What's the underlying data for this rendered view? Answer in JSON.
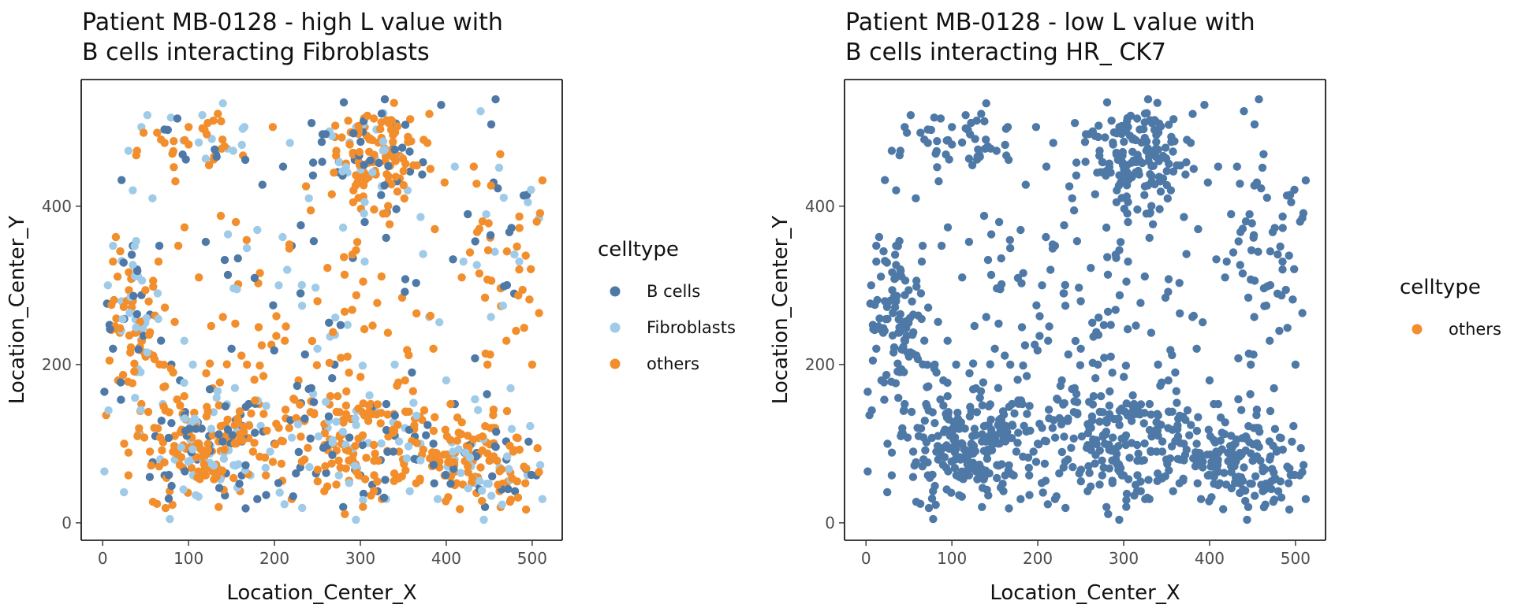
{
  "palette": {
    "B cells": "#4e79a7",
    "Fibroblasts": "#a0cbe8",
    "others": "#f28e2b"
  },
  "chart_data": [
    {
      "type": "scatter",
      "title_lines": [
        "Patient MB-0128 - high L value with",
        " B cells interacting Fibroblasts"
      ],
      "xlabel": "Location_Center_X",
      "ylabel": "Location_Center_Y",
      "xlim": [
        -25,
        535
      ],
      "ylim": [
        -22,
        560
      ],
      "xticks": [
        0,
        100,
        200,
        300,
        400,
        500
      ],
      "yticks": [
        0,
        200,
        400
      ],
      "grid": false,
      "legend_position": "right",
      "legend_title": "celltype",
      "legend_entries": [
        "B cells",
        "Fibroblasts",
        "others"
      ],
      "point_count_note": "approx. 1200 points, each categorized",
      "series": [
        {
          "name": "B cells",
          "points": [
            [
              5,
              277
            ],
            [
              8,
              250
            ],
            [
              12,
              220
            ],
            [
              22,
              433
            ],
            [
              35,
              350
            ],
            [
              40,
              320
            ],
            [
              55,
              263
            ],
            [
              66,
              350
            ],
            [
              72,
              60
            ],
            [
              80,
              200
            ],
            [
              90,
              180
            ],
            [
              96,
              140
            ],
            [
              105,
              120
            ],
            [
              110,
              80
            ],
            [
              120,
              355
            ],
            [
              132,
              465
            ],
            [
              150,
              220
            ],
            [
              155,
              130
            ],
            [
              162,
              60
            ],
            [
              170,
              150
            ],
            [
              180,
              30
            ],
            [
              200,
              100
            ],
            [
              210,
              450
            ],
            [
              220,
              350
            ],
            [
              230,
              70
            ],
            [
              245,
              455
            ],
            [
              260,
              120
            ],
            [
              270,
              200
            ],
            [
              280,
              20
            ],
            [
              290,
              80
            ],
            [
              300,
              60
            ],
            [
              305,
              380
            ],
            [
              320,
              40
            ],
            [
              330,
              360
            ],
            [
              340,
              110
            ],
            [
              360,
              190
            ],
            [
              372,
              440
            ],
            [
              385,
              100
            ],
            [
              394,
              528
            ],
            [
              400,
              60
            ],
            [
              410,
              150
            ],
            [
              425,
              390
            ],
            [
              445,
              20
            ],
            [
              455,
              430
            ],
            [
              470,
              80
            ],
            [
              480,
              40
            ],
            [
              505,
              60
            ]
          ]
        },
        {
          "name": "Fibroblasts",
          "points": [
            [
              2,
              65
            ],
            [
              6,
              300
            ],
            [
              12,
              350
            ],
            [
              22,
              280
            ],
            [
              30,
              470
            ],
            [
              35,
              420
            ],
            [
              45,
              500
            ],
            [
              52,
              515
            ],
            [
              58,
              410
            ],
            [
              64,
              290
            ],
            [
              70,
              150
            ],
            [
              84,
              80
            ],
            [
              95,
              230
            ],
            [
              105,
              200
            ],
            [
              116,
              515
            ],
            [
              120,
              460
            ],
            [
              140,
              530
            ],
            [
              152,
              470
            ],
            [
              165,
              500
            ],
            [
              172,
              60
            ],
            [
              180,
              370
            ],
            [
              195,
              90
            ],
            [
              205,
              300
            ],
            [
              218,
              480
            ],
            [
              230,
              290
            ],
            [
              240,
              410
            ],
            [
              250,
              220
            ],
            [
              262,
              120
            ],
            [
              275,
              60
            ],
            [
              285,
              250
            ],
            [
              295,
              500
            ],
            [
              305,
              330
            ],
            [
              318,
              140
            ],
            [
              330,
              30
            ],
            [
              340,
              200
            ],
            [
              355,
              420
            ],
            [
              370,
              100
            ],
            [
              380,
              260
            ],
            [
              390,
              30
            ],
            [
              400,
              180
            ],
            [
              410,
              450
            ],
            [
              420,
              330
            ],
            [
              430,
              100
            ],
            [
              440,
              520
            ],
            [
              452,
              260
            ],
            [
              462,
              70
            ],
            [
              475,
              170
            ],
            [
              485,
              330
            ],
            [
              495,
              405
            ],
            [
              508,
              385
            ],
            [
              512,
              30
            ]
          ]
        },
        {
          "name": "others",
          "points": [
            [
              4,
              136
            ],
            [
              8,
              205
            ],
            [
              12,
              330
            ],
            [
              18,
              180
            ],
            [
              20,
              240
            ],
            [
              25,
              100
            ],
            [
              30,
              60
            ],
            [
              35,
              280
            ],
            [
              40,
              470
            ],
            [
              45,
              150
            ],
            [
              50,
              210
            ],
            [
              55,
              90
            ],
            [
              60,
              120
            ],
            [
              65,
              330
            ],
            [
              72,
              480
            ],
            [
              78,
              40
            ],
            [
              82,
              190
            ],
            [
              88,
              350
            ],
            [
              95,
              160
            ],
            [
              100,
              500
            ],
            [
              108,
              100
            ],
            [
              112,
              310
            ],
            [
              120,
              60
            ],
            [
              128,
              170
            ],
            [
              135,
              20
            ],
            [
              140,
              260
            ],
            [
              148,
              110
            ],
            [
              155,
              380
            ],
            [
              160,
              40
            ],
            [
              168,
              200
            ],
            [
              175,
              90
            ],
            [
              182,
              150
            ],
            [
              190,
              60
            ],
            [
              198,
              500
            ],
            [
              205,
              120
            ],
            [
              212,
              230
            ],
            [
              220,
              30
            ],
            [
              228,
              180
            ],
            [
              235,
              80
            ],
            [
              242,
              140
            ],
            [
              250,
              280
            ],
            [
              258,
              40
            ],
            [
              265,
              160
            ],
            [
              272,
              470
            ],
            [
              278,
              100
            ],
            [
              285,
              210
            ],
            [
              292,
              420
            ],
            [
              298,
              60
            ],
            [
              305,
              500
            ],
            [
              312,
              150
            ],
            [
              318,
              440
            ],
            [
              325,
              30
            ],
            [
              332,
              240
            ],
            [
              338,
              490
            ],
            [
              345,
              90
            ],
            [
              352,
              180
            ],
            [
              358,
              510
            ],
            [
              365,
              50
            ],
            [
              372,
              130
            ],
            [
              378,
              480
            ],
            [
              385,
              220
            ],
            [
              392,
              70
            ],
            [
              398,
              430
            ],
            [
              405,
              150
            ],
            [
              412,
              50
            ],
            [
              418,
              310
            ],
            [
              425,
              110
            ],
            [
              432,
              450
            ],
            [
              440,
              70
            ],
            [
              448,
              200
            ],
            [
              455,
              120
            ],
            [
              462,
              40
            ],
            [
              470,
              230
            ],
            [
              478,
              90
            ],
            [
              485,
              320
            ],
            [
              492,
              50
            ],
            [
              500,
              200
            ],
            [
              508,
              265
            ]
          ]
        }
      ]
    },
    {
      "type": "scatter",
      "title_lines": [
        "Patient MB-0128 - low L value with",
        " B cells interacting HR_ CK7"
      ],
      "xlabel": "Location_Center_X",
      "ylabel": "Location_Center_Y",
      "xlim": [
        -25,
        535
      ],
      "ylim": [
        -22,
        560
      ],
      "xticks": [
        0,
        100,
        200,
        300,
        400,
        500
      ],
      "yticks": [
        0,
        200,
        400
      ],
      "grid": false,
      "legend_position": "right",
      "legend_title": "celltype",
      "legend_entries": [
        "others"
      ],
      "series": [
        {
          "name": "others",
          "same_points_as": "chart 1 all cells"
        }
      ]
    }
  ]
}
